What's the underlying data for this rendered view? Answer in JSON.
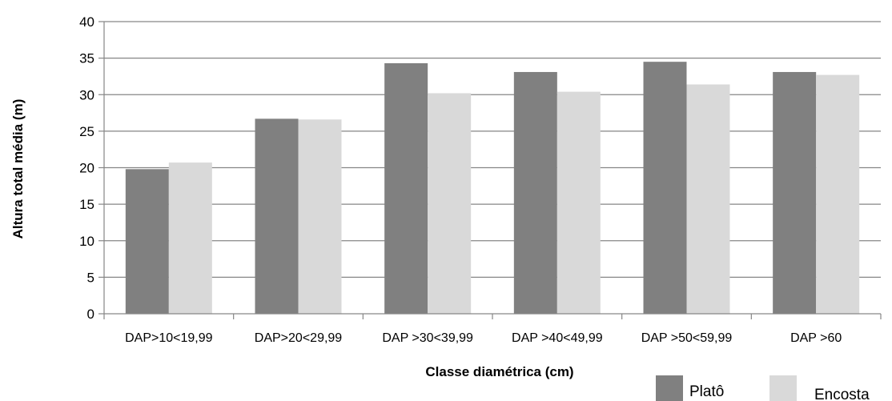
{
  "chart_data": {
    "type": "bar",
    "title": "",
    "xlabel": "Classe diamétrica (cm)",
    "ylabel": "Altura total média (m)",
    "ylim": [
      0,
      40
    ],
    "yticks": [
      0,
      5,
      10,
      15,
      20,
      25,
      30,
      35,
      40
    ],
    "grid": true,
    "legend_position": "bottom-right",
    "categories": [
      "DAP>10<19,99",
      "DAP>20<29,99",
      "DAP >30<39,99",
      "DAP >40<49,99",
      "DAP >50<59,99",
      "DAP >60"
    ],
    "series": [
      {
        "name": "Platô",
        "color": "#808080",
        "values": [
          19.8,
          26.7,
          34.3,
          33.1,
          34.5,
          33.1
        ]
      },
      {
        "name": "Encosta",
        "color": "#d9d9d9",
        "values": [
          20.7,
          26.6,
          30.2,
          30.4,
          31.4,
          32.7
        ]
      }
    ]
  }
}
